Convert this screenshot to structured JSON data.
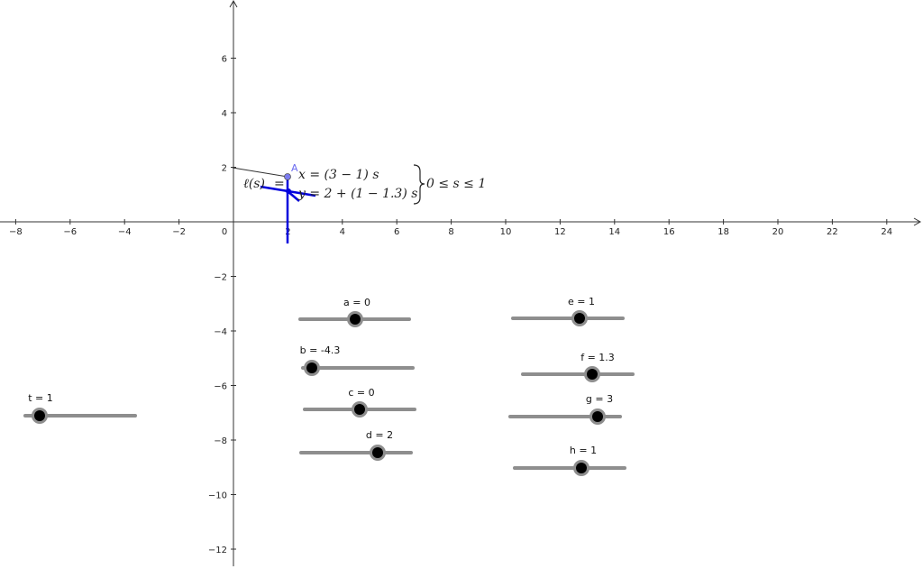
{
  "graph": {
    "x_ticks": [
      "−8",
      "−6",
      "−4",
      "−2",
      "0",
      "2",
      "4",
      "6",
      "8",
      "10",
      "12",
      "14",
      "16",
      "18",
      "20",
      "22",
      "24"
    ],
    "y_ticks": [
      "6",
      "4",
      "2",
      "−2",
      "−4",
      "−6",
      "−8",
      "−10",
      "−12"
    ],
    "point_label": "A",
    "curve": {
      "name": "ℓ(s)",
      "equals": "=",
      "x_eq": "x = (3 − 1) s",
      "y_eq": "y = 2 + (1 − 1.3) s",
      "condition": "0 ≤ s ≤ 1"
    }
  },
  "sliders": [
    {
      "label": "a = 0"
    },
    {
      "label": "b = -4.3"
    },
    {
      "label": "c = 0"
    },
    {
      "label": "d = 2"
    },
    {
      "label": "e = 1"
    },
    {
      "label": "f = 1.3"
    },
    {
      "label": "g = 3"
    },
    {
      "label": "h = 1"
    },
    {
      "label": "t = 1"
    }
  ],
  "colors": {
    "line_blue": "#0000dd",
    "point": "#7c7cf0",
    "slider_track": "#8e8e8e"
  }
}
